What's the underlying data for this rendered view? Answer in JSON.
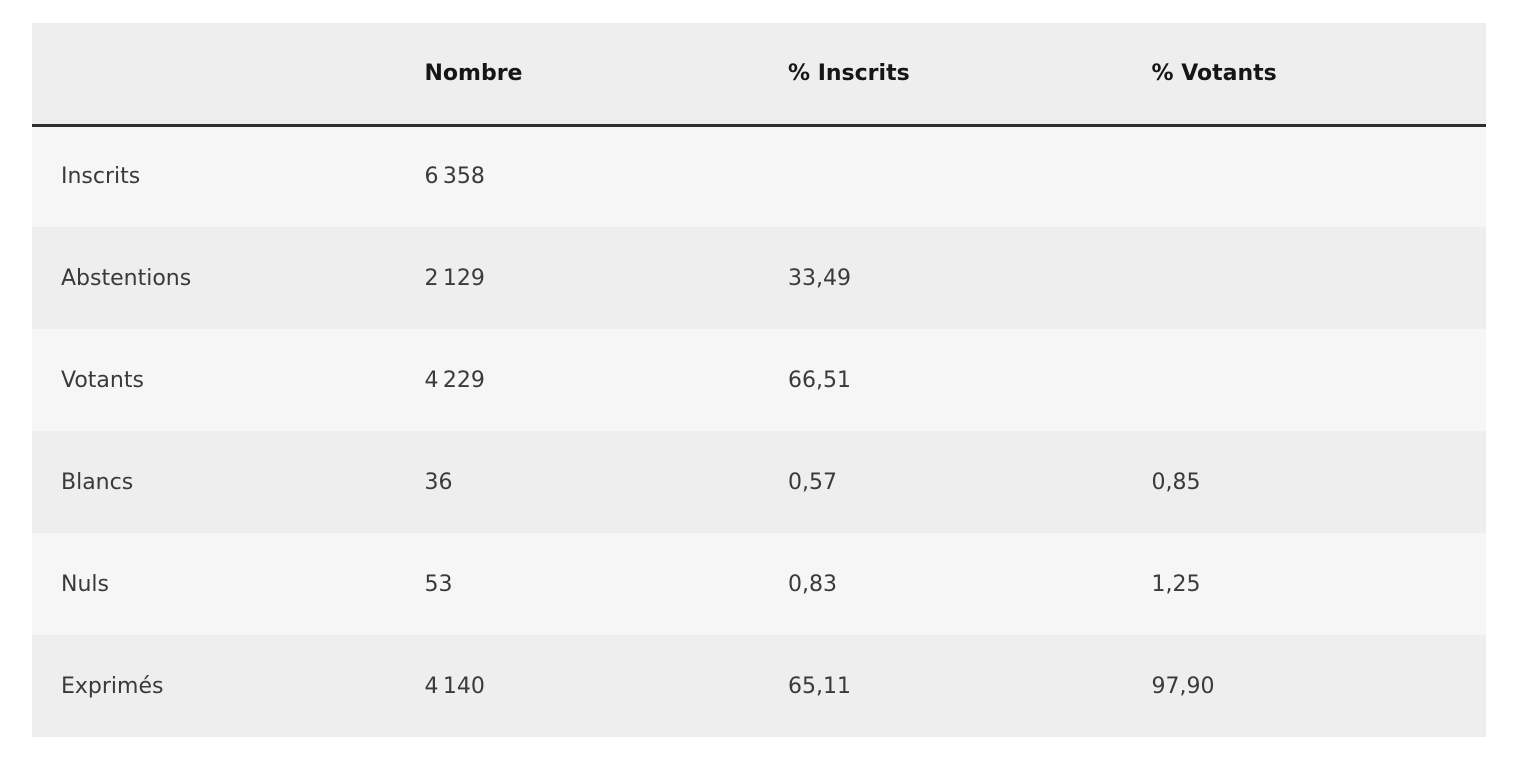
{
  "table": {
    "header": [
      "Nombre",
      "% Inscrits",
      "% Votants"
    ],
    "rows": [
      [
        "Inscrits",
        "6 358"
      ],
      [
        "Abstentions",
        "2 129",
        "33,49"
      ],
      [
        "Votants",
        "4 229",
        "66,51"
      ],
      [
        "Blancs",
        "36",
        "0,57",
        "0,85"
      ],
      [
        "Nuls",
        "53",
        "0,83",
        "1,25"
      ],
      [
        "Exprimés",
        "4 140",
        "65,11",
        "97,90"
      ]
    ]
  }
}
